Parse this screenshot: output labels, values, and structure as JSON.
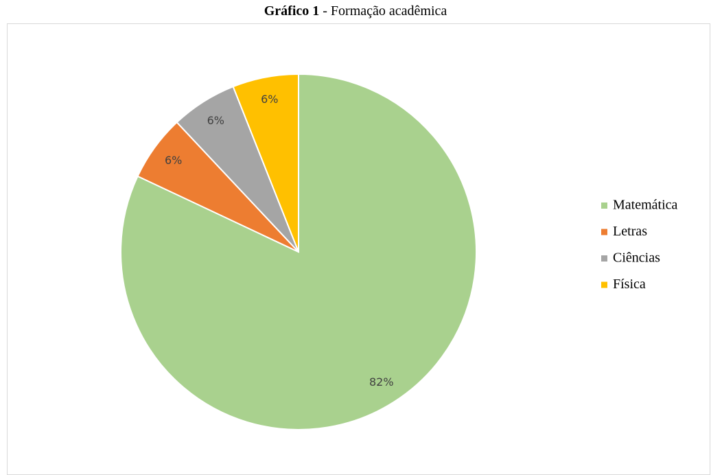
{
  "chart_data": {
    "type": "pie",
    "title_prefix": "Gráfico 1",
    "title": "- Formação acadêmica",
    "categories": [
      "Matemática",
      "Letras",
      "Ciências",
      "Física"
    ],
    "values": [
      82,
      6,
      6,
      6
    ],
    "value_labels": [
      "82%",
      "6%",
      "6%",
      "6%"
    ],
    "colors": [
      "#a9d18e",
      "#ed7d31",
      "#a5a5a5",
      "#ffc000"
    ],
    "legend": "right"
  }
}
